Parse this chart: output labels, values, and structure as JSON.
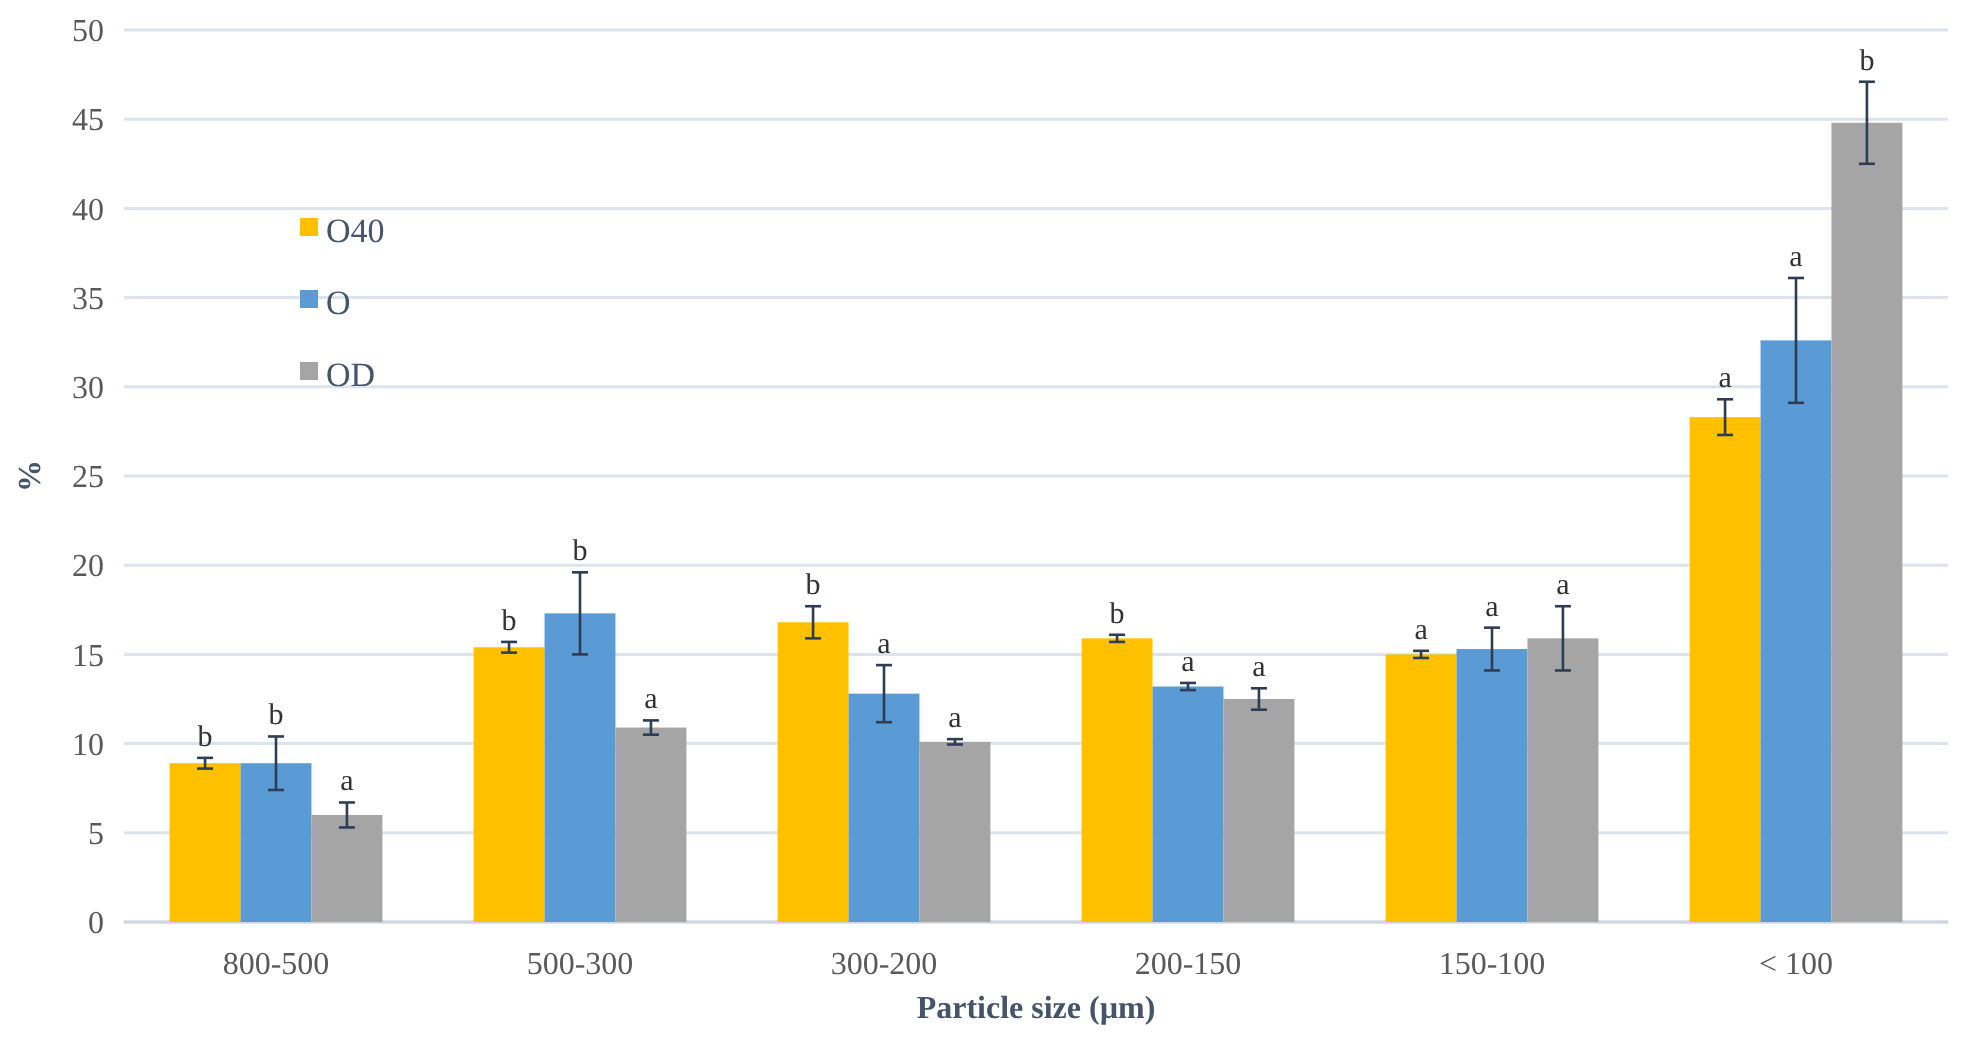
{
  "chart_data": {
    "type": "bar",
    "xlabel": "Particle size (µm)",
    "ylabel": "%",
    "categories": [
      "800-500",
      "500-300",
      "300-200",
      "200-150",
      "150-100",
      "< 100"
    ],
    "series": [
      {
        "name": "O40",
        "color": "#ffc000",
        "values": [
          8.9,
          15.4,
          16.8,
          15.9,
          15.0,
          28.3
        ],
        "errors": [
          0.3,
          0.3,
          0.9,
          0.2,
          0.2,
          1.0
        ],
        "value_labels": [
          "b",
          "b",
          "b",
          "b",
          "a",
          "a"
        ]
      },
      {
        "name": "O",
        "color": "#5b9bd5",
        "values": [
          8.9,
          17.3,
          12.8,
          13.2,
          15.3,
          32.6
        ],
        "errors": [
          1.5,
          2.3,
          1.6,
          0.2,
          1.2,
          3.5
        ],
        "value_labels": [
          "b",
          "b",
          "a",
          "a",
          "a",
          "a"
        ]
      },
      {
        "name": "OD",
        "color": "#a5a5a5",
        "values": [
          6.0,
          10.9,
          10.1,
          12.5,
          15.9,
          44.8
        ],
        "errors": [
          0.7,
          0.4,
          0.15,
          0.6,
          1.8,
          2.3
        ],
        "value_labels": [
          "a",
          "a",
          "a",
          "a",
          "a",
          "b"
        ]
      }
    ],
    "ylim": [
      0,
      50
    ],
    "yticks": [
      0,
      5,
      10,
      15,
      20,
      25,
      30,
      35,
      40,
      45,
      50
    ],
    "grid": "y",
    "legend": "top left"
  }
}
